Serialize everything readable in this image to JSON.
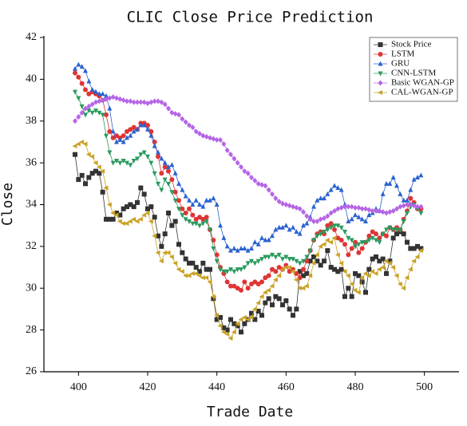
{
  "chart_data": {
    "type": "line",
    "title": "CLIC Close Price Prediction",
    "x_label": "Trade Date",
    "y_label": "Close",
    "x": [
      399,
      400,
      401,
      402,
      403,
      404,
      405,
      406,
      407,
      408,
      409,
      410,
      411,
      412,
      413,
      414,
      415,
      416,
      417,
      418,
      419,
      420,
      421,
      422,
      423,
      424,
      425,
      426,
      427,
      428,
      429,
      430,
      431,
      432,
      433,
      434,
      435,
      436,
      437,
      438,
      439,
      440,
      441,
      442,
      443,
      444,
      445,
      446,
      447,
      448,
      449,
      450,
      451,
      452,
      453,
      454,
      455,
      456,
      457,
      458,
      459,
      460,
      461,
      462,
      463,
      464,
      465,
      466,
      467,
      468,
      469,
      470,
      471,
      472,
      473,
      474,
      475,
      476,
      477,
      478,
      479,
      480,
      481,
      482,
      483,
      484,
      485,
      486,
      487,
      488,
      489,
      490,
      491,
      492,
      493,
      494,
      495,
      496,
      497,
      498,
      499
    ],
    "xlim": [
      390,
      510
    ],
    "xticks": [
      400,
      420,
      440,
      460,
      480,
      500
    ],
    "ylim": [
      26,
      42
    ],
    "yticks": [
      26,
      28,
      30,
      32,
      34,
      36,
      38,
      40,
      42
    ],
    "legend": "upper right",
    "series": [
      {
        "name": "Stock Price",
        "color": "#333333",
        "marker": "square",
        "values": [
          36.4,
          35.2,
          35.4,
          35.0,
          35.3,
          35.5,
          35.6,
          35.5,
          34.6,
          33.3,
          33.3,
          33.3,
          33.6,
          33.5,
          33.8,
          33.9,
          34.0,
          33.9,
          34.1,
          34.8,
          34.5,
          33.8,
          33.9,
          33.4,
          32.5,
          32.0,
          32.6,
          33.6,
          33.0,
          33.2,
          32.1,
          31.7,
          31.4,
          31.2,
          31.2,
          31.0,
          30.8,
          31.2,
          30.9,
          30.9,
          29.5,
          28.5,
          28.6,
          28.1,
          28.0,
          28.5,
          28.3,
          28.2,
          27.9,
          28.3,
          28.5,
          28.8,
          28.5,
          28.9,
          28.7,
          29.3,
          29.5,
          29.2,
          29.6,
          29.5,
          29.2,
          29.4,
          29.0,
          28.7,
          29.0,
          30.8,
          30.6,
          30.7,
          31.3,
          31.5,
          31.3,
          31.1,
          31.3,
          31.8,
          31.0,
          30.9,
          30.8,
          30.9,
          29.6,
          30.0,
          29.6,
          30.7,
          30.6,
          30.3,
          29.8,
          30.9,
          31.4,
          31.5,
          31.3,
          31.4,
          30.7,
          31.3,
          32.4,
          32.6,
          32.7,
          32.6,
          32.2,
          31.9,
          31.9,
          32.0,
          31.9
        ]
      },
      {
        "name": "LSTM",
        "color": "#e03434",
        "marker": "circle",
        "values": [
          40.3,
          40.1,
          39.8,
          39.5,
          39.3,
          39.4,
          39.3,
          39.2,
          39.0,
          38.3,
          37.5,
          37.2,
          37.3,
          37.2,
          37.3,
          37.5,
          37.6,
          37.7,
          37.6,
          37.9,
          37.9,
          37.8,
          37.5,
          37.0,
          36.3,
          35.5,
          35.8,
          35.6,
          35.2,
          34.6,
          34.2,
          33.8,
          33.6,
          33.8,
          33.5,
          33.3,
          33.4,
          33.3,
          33.4,
          32.8,
          32.3,
          31.6,
          31.0,
          30.7,
          30.3,
          30.1,
          30.1,
          30.0,
          29.9,
          30.3,
          30.0,
          30.2,
          30.3,
          30.2,
          30.3,
          30.5,
          30.6,
          30.9,
          30.8,
          31.0,
          30.9,
          31.1,
          30.8,
          30.9,
          30.7,
          30.5,
          30.9,
          31.3,
          31.8,
          32.3,
          32.6,
          32.7,
          32.6,
          33.0,
          33.1,
          32.8,
          32.4,
          32.3,
          32.1,
          31.6,
          31.9,
          32.2,
          31.7,
          31.9,
          32.2,
          32.5,
          32.7,
          32.6,
          32.4,
          32.6,
          32.5,
          32.9,
          32.8,
          32.9,
          32.8,
          33.3,
          33.7,
          34.3,
          34.1,
          33.8,
          33.8
        ]
      },
      {
        "name": "GRU",
        "color": "#2a62d0",
        "marker": "triangle-up",
        "values": [
          40.5,
          40.7,
          40.6,
          40.4,
          39.9,
          39.5,
          39.4,
          39.3,
          39.3,
          39.2,
          38.6,
          37.5,
          37.0,
          37.1,
          37.0,
          37.2,
          37.3,
          37.5,
          37.6,
          37.8,
          37.8,
          37.6,
          37.3,
          36.8,
          36.5,
          36.2,
          36.0,
          35.8,
          35.9,
          35.5,
          35.0,
          34.7,
          34.4,
          34.2,
          34.0,
          34.2,
          34.0,
          33.9,
          34.2,
          34.2,
          34.3,
          34.0,
          33.0,
          32.4,
          32.0,
          31.8,
          31.9,
          31.8,
          31.9,
          31.9,
          31.8,
          31.9,
          32.2,
          32.1,
          32.4,
          32.3,
          32.3,
          32.5,
          32.8,
          32.9,
          32.9,
          33.0,
          32.8,
          32.9,
          32.7,
          32.6,
          33.0,
          33.1,
          33.4,
          33.9,
          34.2,
          34.3,
          34.3,
          34.5,
          34.7,
          34.9,
          34.8,
          34.7,
          34.0,
          33.2,
          33.3,
          33.5,
          33.4,
          33.3,
          33.2,
          33.5,
          33.6,
          33.8,
          33.7,
          34.5,
          35.0,
          35.0,
          35.3,
          34.9,
          34.5,
          34.2,
          34.2,
          34.7,
          35.2,
          35.3,
          35.4
        ]
      },
      {
        "name": "CNN-LSTM",
        "color": "#2a9a5e",
        "marker": "triangle-down",
        "values": [
          39.4,
          39.1,
          38.7,
          38.3,
          38.5,
          38.4,
          38.5,
          38.4,
          38.3,
          37.3,
          36.5,
          36.0,
          36.1,
          36.0,
          36.1,
          36.0,
          35.9,
          36.1,
          36.2,
          36.4,
          36.5,
          36.3,
          36.0,
          35.5,
          35.0,
          34.7,
          35.2,
          35.0,
          34.6,
          34.2,
          33.8,
          33.5,
          33.3,
          33.2,
          33.1,
          33.1,
          33.0,
          33.1,
          33.2,
          32.8,
          31.9,
          31.3,
          30.9,
          30.8,
          30.8,
          30.9,
          30.8,
          30.9,
          30.9,
          31.0,
          31.2,
          31.3,
          31.2,
          31.3,
          31.4,
          31.5,
          31.5,
          31.6,
          31.5,
          31.6,
          31.4,
          31.5,
          31.4,
          31.4,
          31.3,
          31.2,
          31.3,
          31.5,
          31.8,
          32.3,
          32.5,
          32.6,
          32.7,
          32.8,
          32.9,
          33.0,
          33.0,
          32.9,
          32.7,
          32.4,
          32.3,
          32.0,
          32.1,
          32.2,
          32.2,
          32.3,
          32.4,
          32.3,
          32.2,
          32.6,
          32.8,
          32.9,
          32.8,
          32.8,
          32.8,
          33.2,
          33.6,
          33.9,
          34.0,
          33.8,
          33.6
        ]
      },
      {
        "name": "Basic WGAN-GP",
        "color": "#b565e6",
        "marker": "diamond",
        "values": [
          38.0,
          38.2,
          38.4,
          38.6,
          38.7,
          38.8,
          38.9,
          38.95,
          39.0,
          39.05,
          39.1,
          39.15,
          39.1,
          39.05,
          39.0,
          38.95,
          38.95,
          38.9,
          38.9,
          38.9,
          38.9,
          38.85,
          38.9,
          38.95,
          38.95,
          38.9,
          38.8,
          38.6,
          38.4,
          38.35,
          38.3,
          38.1,
          37.95,
          37.8,
          37.7,
          37.5,
          37.4,
          37.3,
          37.25,
          37.2,
          37.15,
          37.1,
          37.1,
          36.9,
          36.6,
          36.4,
          36.2,
          36.0,
          35.8,
          35.6,
          35.5,
          35.3,
          35.15,
          35.0,
          34.95,
          34.9,
          34.7,
          34.5,
          34.3,
          34.15,
          34.05,
          34.0,
          33.95,
          33.9,
          33.85,
          33.8,
          33.65,
          33.45,
          33.3,
          33.2,
          33.2,
          33.3,
          33.35,
          33.45,
          33.6,
          33.7,
          33.8,
          33.85,
          33.9,
          33.9,
          33.9,
          33.85,
          33.85,
          33.8,
          33.8,
          33.75,
          33.7,
          33.7,
          33.7,
          33.65,
          33.6,
          33.65,
          33.7,
          33.8,
          33.9,
          33.95,
          34.0,
          34.0,
          33.95,
          33.9,
          33.9
        ]
      },
      {
        "name": "CAL-WGAN-GP",
        "color": "#c9a224",
        "marker": "triangle-left",
        "values": [
          36.8,
          36.9,
          37.0,
          36.9,
          36.4,
          36.3,
          36.0,
          35.8,
          35.6,
          34.8,
          34.0,
          33.6,
          33.5,
          33.2,
          33.1,
          33.1,
          33.2,
          33.3,
          33.2,
          33.3,
          33.5,
          33.6,
          33.2,
          32.5,
          31.7,
          31.3,
          31.7,
          31.7,
          31.5,
          31.2,
          30.9,
          30.8,
          30.6,
          30.6,
          30.7,
          30.7,
          30.6,
          30.5,
          30.5,
          30.3,
          29.6,
          28.7,
          28.2,
          27.9,
          27.8,
          27.6,
          27.9,
          28.3,
          28.5,
          28.6,
          28.5,
          28.6,
          29.0,
          29.3,
          29.6,
          29.8,
          29.9,
          30.1,
          30.4,
          30.6,
          30.9,
          31.0,
          31.0,
          30.8,
          30.4,
          30.0,
          30.0,
          30.1,
          30.6,
          31.2,
          31.6,
          32.0,
          32.1,
          32.3,
          32.2,
          32.4,
          31.6,
          31.2,
          30.8,
          30.6,
          30.2,
          29.9,
          29.8,
          30.5,
          30.7,
          30.6,
          30.8,
          30.7,
          30.9,
          31.0,
          31.3,
          31.2,
          31.0,
          30.6,
          30.2,
          30.0,
          30.5,
          30.9,
          31.3,
          31.5,
          31.8
        ]
      }
    ]
  }
}
